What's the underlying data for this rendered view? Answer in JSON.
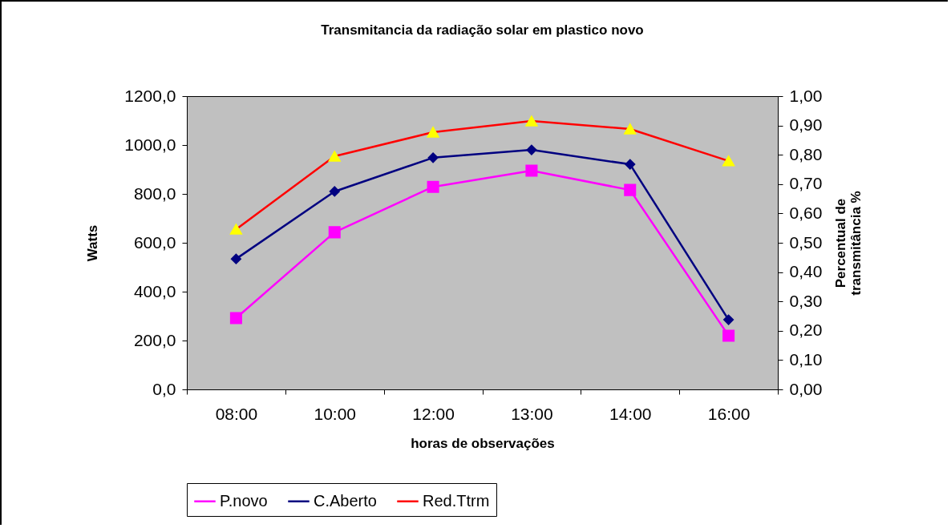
{
  "chart_data": {
    "type": "line",
    "title": "Transmitancia da radiação  solar em  plastico novo",
    "xlabel": "horas de observações",
    "ylabel": "Watts",
    "y2label": "Percentual de transmitância %",
    "categories": [
      "08:00",
      "10:00",
      "12:00",
      "13:00",
      "14:00",
      "16:00"
    ],
    "series": [
      {
        "name": "P.novo",
        "color": "#ff00ff",
        "marker": "square",
        "values": [
          292,
          643,
          829,
          895,
          816,
          220
        ]
      },
      {
        "name": "C.Aberto",
        "color": "#000080",
        "marker": "diamond",
        "values": [
          534,
          810,
          948,
          980,
          921,
          285
        ]
      },
      {
        "name": "Red.Ttrm",
        "color": "#ff0000",
        "marker": "triangle",
        "axis": "y2",
        "colors": [
          "#ffff00",
          "#ffff00",
          "#ffff00",
          "#ffff00",
          "#ffff00",
          "#ffff00"
        ],
        "values": [
          0.546,
          0.795,
          0.877,
          0.915,
          0.888,
          0.779
        ]
      }
    ],
    "ylim": [
      0,
      1200
    ],
    "yticks": [
      {
        "value": 0,
        "label": "0,0"
      },
      {
        "value": 200,
        "label": "200,0"
      },
      {
        "value": 400,
        "label": "400,0"
      },
      {
        "value": 600,
        "label": "600,0"
      },
      {
        "value": 800,
        "label": "800,0"
      },
      {
        "value": 1000,
        "label": "1000,0"
      },
      {
        "value": 1200,
        "label": "1200,0"
      }
    ],
    "y2lim": [
      0,
      1
    ],
    "y2ticks": [
      {
        "value": 0,
        "label": "0,00"
      },
      {
        "value": 0.1,
        "label": "0,10"
      },
      {
        "value": 0.2,
        "label": "0,20"
      },
      {
        "value": 0.3,
        "label": "0,30"
      },
      {
        "value": 0.4,
        "label": "0,40"
      },
      {
        "value": 0.5,
        "label": "0,50"
      },
      {
        "value": 0.6,
        "label": "0,60"
      },
      {
        "value": 0.7,
        "label": "0,70"
      },
      {
        "value": 0.8,
        "label": "0,80"
      },
      {
        "value": 0.9,
        "label": "0,90"
      },
      {
        "value": 1,
        "label": "1,00"
      }
    ],
    "grid": false,
    "legend": "bottom"
  }
}
